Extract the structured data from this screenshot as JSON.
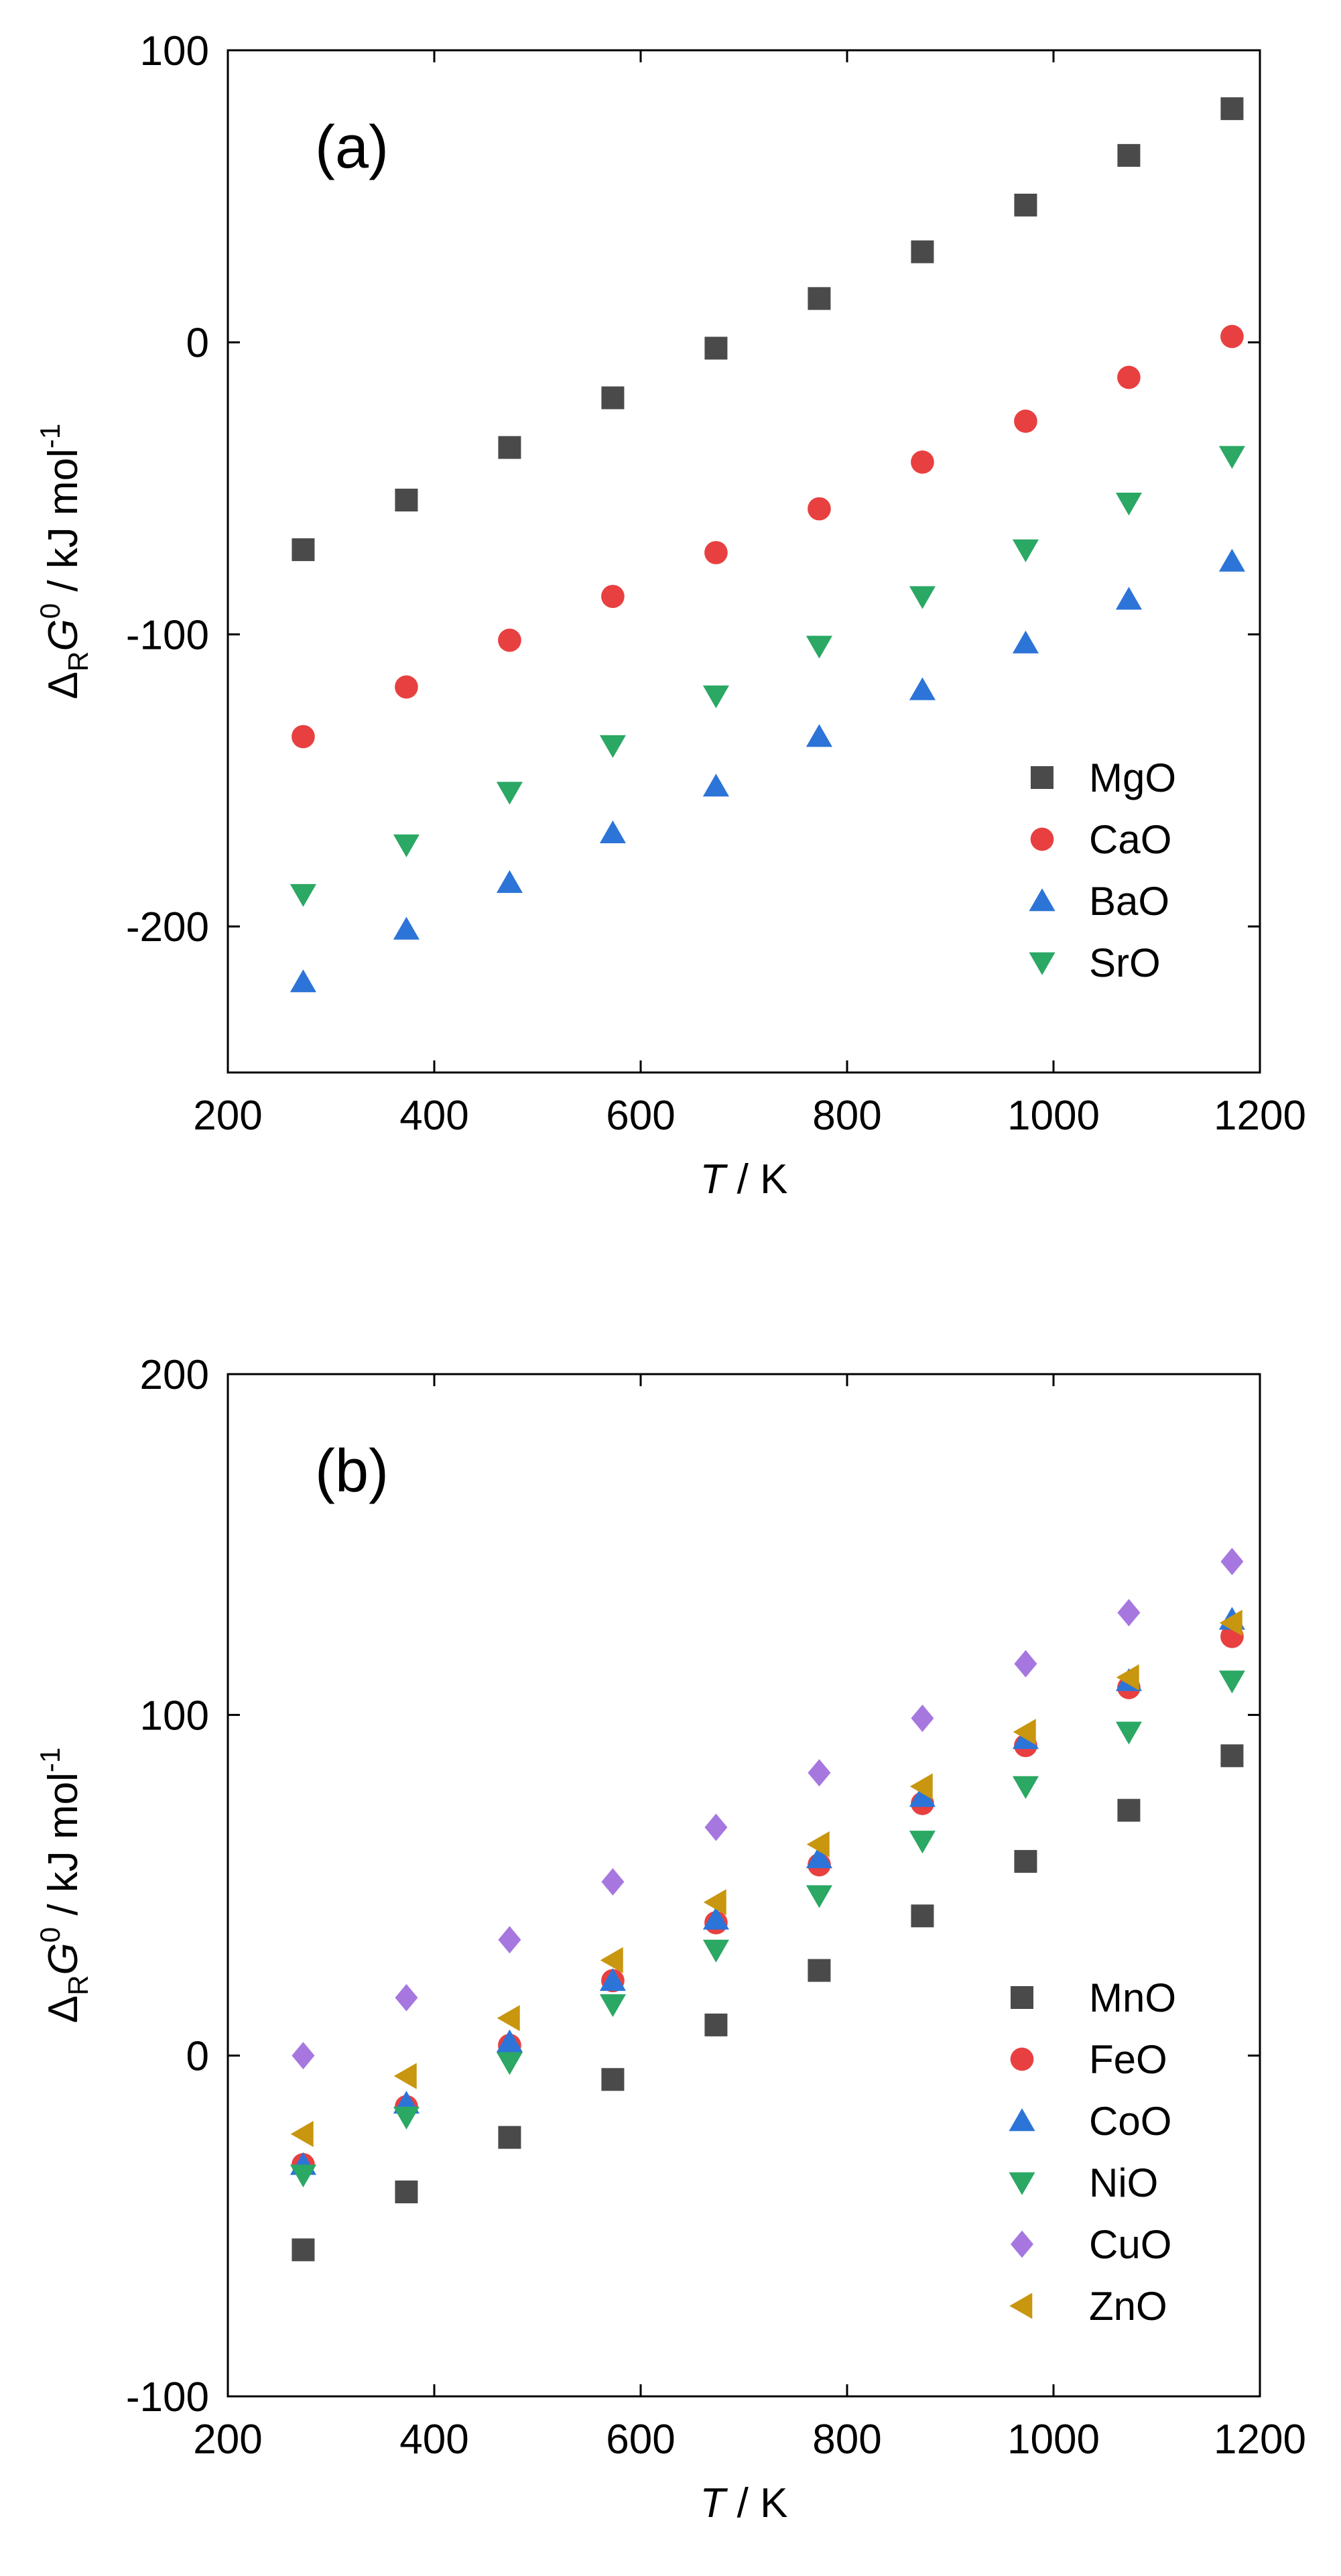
{
  "chart_data": [
    {
      "type": "scatter",
      "panel_label": "(a)",
      "xlabel_italic": "T",
      "xlabel_rest": " / K",
      "ylabel_parts": {
        "delta": "Δ",
        "sub": "R",
        "var": "G",
        "sup": "0",
        "unit": " / kJ mol",
        "unit_sup": "-1"
      },
      "xlim": [
        200,
        1200
      ],
      "ylim": [
        -250,
        100
      ],
      "xticks": [
        200,
        400,
        600,
        800,
        1000,
        1200
      ],
      "yticks": [
        -200,
        -100,
        0,
        100
      ],
      "grid": false,
      "legend_position": "bottom-right",
      "x": [
        273,
        373,
        473,
        573,
        673,
        773,
        873,
        973,
        1073,
        1173
      ],
      "series": [
        {
          "name": "MgO",
          "marker": "square",
          "color": "#4a4a4a",
          "values": [
            -71,
            -54,
            -36,
            -19,
            -2,
            15,
            31,
            47,
            64,
            80
          ]
        },
        {
          "name": "CaO",
          "marker": "circle",
          "color": "#e84040",
          "values": [
            -135,
            -118,
            -102,
            -87,
            -72,
            -57,
            -41,
            -27,
            -12,
            2
          ]
        },
        {
          "name": "BaO",
          "marker": "triangle-up",
          "color": "#2c74d8",
          "values": [
            -219,
            -201,
            -185,
            -168,
            -152,
            -135,
            -119,
            -103,
            -88,
            -75
          ]
        },
        {
          "name": "SrO",
          "marker": "triangle-down",
          "color": "#2aa864",
          "values": [
            -189,
            -172,
            -154,
            -138,
            -121,
            -104,
            -87,
            -71,
            -55,
            -39
          ]
        }
      ]
    },
    {
      "type": "scatter",
      "panel_label": "(b)",
      "xlabel_italic": "T",
      "xlabel_rest": " / K",
      "ylabel_parts": {
        "delta": "Δ",
        "sub": "R",
        "var": "G",
        "sup": "0",
        "unit": " / kJ mol",
        "unit_sup": "-1"
      },
      "xlim": [
        200,
        1200
      ],
      "ylim": [
        -100,
        200
      ],
      "xticks": [
        200,
        400,
        600,
        800,
        1000,
        1200
      ],
      "yticks": [
        -100,
        0,
        100,
        200
      ],
      "grid": false,
      "legend_position": "bottom-right",
      "x": [
        273,
        373,
        473,
        573,
        673,
        773,
        873,
        973,
        1073,
        1173
      ],
      "series": [
        {
          "name": "MnO",
          "marker": "square",
          "color": "#4a4a4a",
          "values": [
            -57,
            -40,
            -24,
            -7,
            9,
            25,
            41,
            57,
            72,
            88
          ]
        },
        {
          "name": "FeO",
          "marker": "circle",
          "color": "#e84040",
          "values": [
            -32,
            -15,
            3,
            22,
            39,
            56,
            74,
            91,
            108,
            123
          ]
        },
        {
          "name": "CoO",
          "marker": "triangle-up",
          "color": "#2c74d8",
          "values": [
            -32,
            -14,
            4,
            22,
            40,
            58,
            76,
            93,
            110,
            128
          ]
        },
        {
          "name": "NiO",
          "marker": "triangle-down",
          "color": "#2aa864",
          "values": [
            -35,
            -18,
            -2,
            15,
            31,
            47,
            63,
            79,
            95,
            110
          ]
        },
        {
          "name": "CuO",
          "marker": "diamond",
          "color": "#a777e0",
          "values": [
            0,
            17,
            34,
            51,
            67,
            83,
            99,
            115,
            130,
            145
          ]
        },
        {
          "name": "ZnO",
          "marker": "triangle-left",
          "color": "#c8960f",
          "values": [
            -23,
            -6,
            11,
            28,
            45,
            62,
            79,
            95,
            111,
            127
          ]
        }
      ]
    }
  ]
}
